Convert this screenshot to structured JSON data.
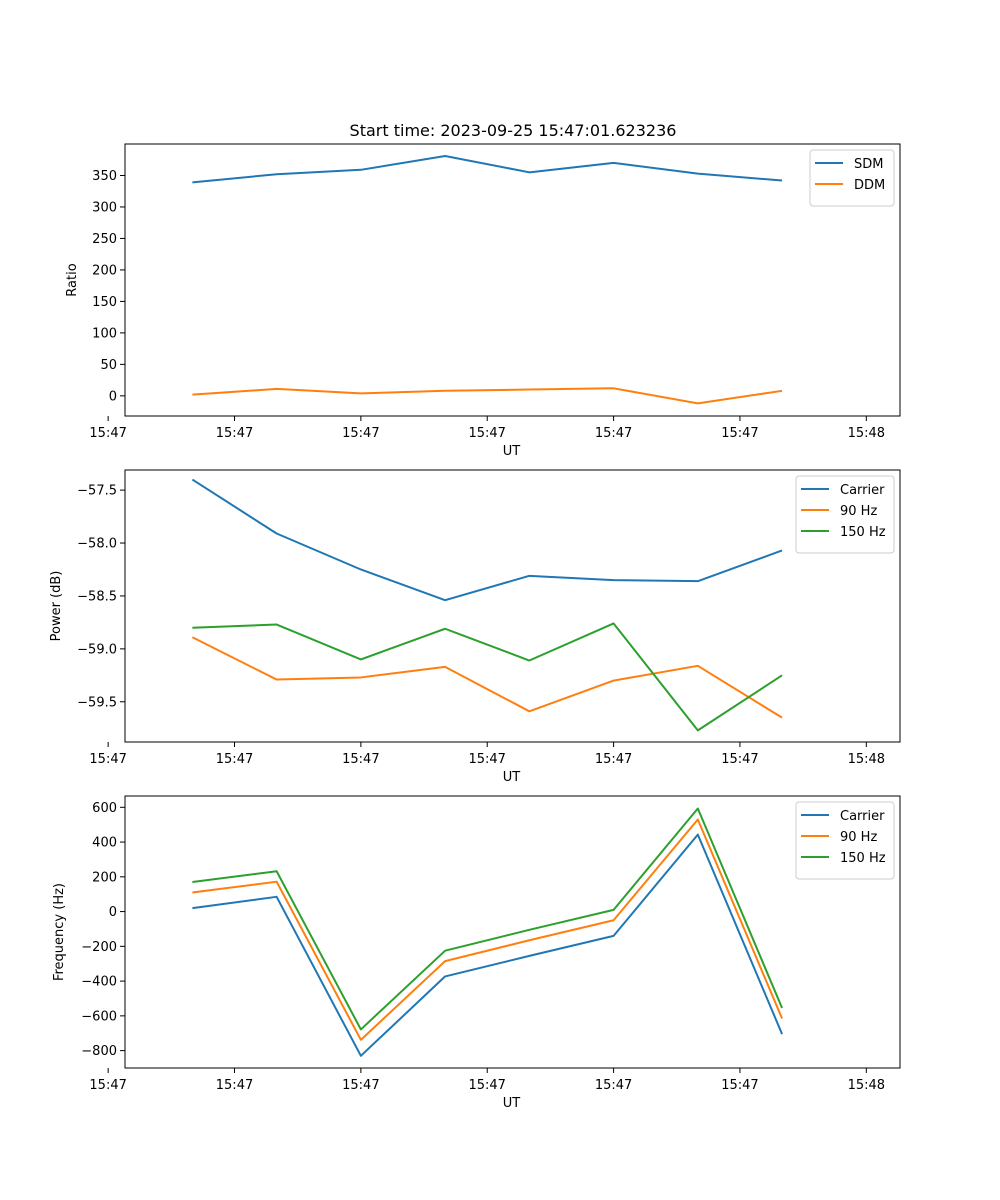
{
  "figure_title": "Start time: 2023-09-25 15:47:01.623236",
  "colors": {
    "blue": "#1f77b4",
    "orange": "#ff7f0e",
    "green": "#2ca02c",
    "axis": "#000000",
    "legend_border": "#cccccc"
  },
  "chart_data": [
    {
      "type": "line",
      "title": "Start time: 2023-09-25 15:47:01.623236",
      "xlabel": "UT",
      "ylabel": "Ratio",
      "x": [
        1,
        2,
        3,
        4,
        5,
        6,
        7,
        8
      ],
      "xlim": [
        0.2,
        9.4
      ],
      "x_ticks": [
        0,
        1.5,
        3,
        4.5,
        6,
        7.5,
        9
      ],
      "x_tick_labels": [
        "15:47",
        "15:47",
        "15:47",
        "15:47",
        "15:47",
        "15:47",
        "15:48"
      ],
      "ylim": [
        -32,
        400
      ],
      "y_ticks": [
        0,
        50,
        100,
        150,
        200,
        250,
        300,
        350
      ],
      "y_tick_labels": [
        "0",
        "50",
        "100",
        "150",
        "200",
        "250",
        "300",
        "350"
      ],
      "legend_position": "top-right",
      "series": [
        {
          "name": "SDM",
          "color": "#1f77b4",
          "values": [
            339,
            352,
            359,
            381,
            355,
            370,
            353,
            342
          ]
        },
        {
          "name": "DDM",
          "color": "#ff7f0e",
          "values": [
            2,
            11,
            4,
            8,
            10,
            12,
            -12,
            8
          ]
        }
      ]
    },
    {
      "type": "line",
      "title": "",
      "xlabel": "UT",
      "ylabel": "Power (dB)",
      "x": [
        1,
        2,
        3,
        4,
        5,
        6,
        7,
        8
      ],
      "xlim": [
        0.2,
        9.4
      ],
      "x_ticks": [
        0,
        1.5,
        3,
        4.5,
        6,
        7.5,
        9
      ],
      "x_tick_labels": [
        "15:47",
        "15:47",
        "15:47",
        "15:47",
        "15:47",
        "15:47",
        "15:48"
      ],
      "ylim": [
        -59.88,
        -57.31
      ],
      "y_ticks": [
        -57.5,
        -58.0,
        -58.5,
        -59.0,
        -59.5
      ],
      "y_tick_labels": [
        "−57.5",
        "−58.0",
        "−58.5",
        "−59.0",
        "−59.5"
      ],
      "legend_position": "top-right",
      "series": [
        {
          "name": "Carrier",
          "color": "#1f77b4",
          "values": [
            -57.4,
            -57.91,
            -58.25,
            -58.54,
            -58.31,
            -58.35,
            -58.36,
            -58.07
          ]
        },
        {
          "name": "90 Hz",
          "color": "#ff7f0e",
          "values": [
            -58.89,
            -59.29,
            -59.27,
            -59.17,
            -59.59,
            -59.3,
            -59.16,
            -59.65
          ]
        },
        {
          "name": "150 Hz",
          "color": "#2ca02c",
          "values": [
            -58.8,
            -58.77,
            -59.1,
            -58.81,
            -59.11,
            -58.76,
            -59.77,
            -59.25
          ]
        }
      ]
    },
    {
      "type": "line",
      "title": "",
      "xlabel": "UT",
      "ylabel": "Frequency (Hz)",
      "x": [
        1,
        2,
        3,
        4,
        5,
        6,
        7,
        8
      ],
      "xlim": [
        0.2,
        9.4
      ],
      "x_ticks": [
        0,
        1.5,
        3,
        4.5,
        6,
        7.5,
        9
      ],
      "x_tick_labels": [
        "15:47",
        "15:47",
        "15:47",
        "15:47",
        "15:47",
        "15:47",
        "15:48"
      ],
      "ylim": [
        -900,
        665
      ],
      "y_ticks": [
        600,
        400,
        200,
        0,
        -200,
        -400,
        -600,
        -800
      ],
      "y_tick_labels": [
        "600",
        "400",
        "200",
        "0",
        "−200",
        "−400",
        "−600",
        "−800"
      ],
      "legend_position": "top-right",
      "series": [
        {
          "name": "Carrier",
          "color": "#1f77b4",
          "values": [
            20,
            85,
            -830,
            -373,
            -255,
            -140,
            443,
            -705
          ]
        },
        {
          "name": "90 Hz",
          "color": "#ff7f0e",
          "values": [
            110,
            172,
            -738,
            -285,
            -165,
            -50,
            530,
            -615
          ]
        },
        {
          "name": "150 Hz",
          "color": "#2ca02c",
          "values": [
            170,
            232,
            -678,
            -225,
            -105,
            10,
            593,
            -555
          ]
        }
      ]
    }
  ]
}
